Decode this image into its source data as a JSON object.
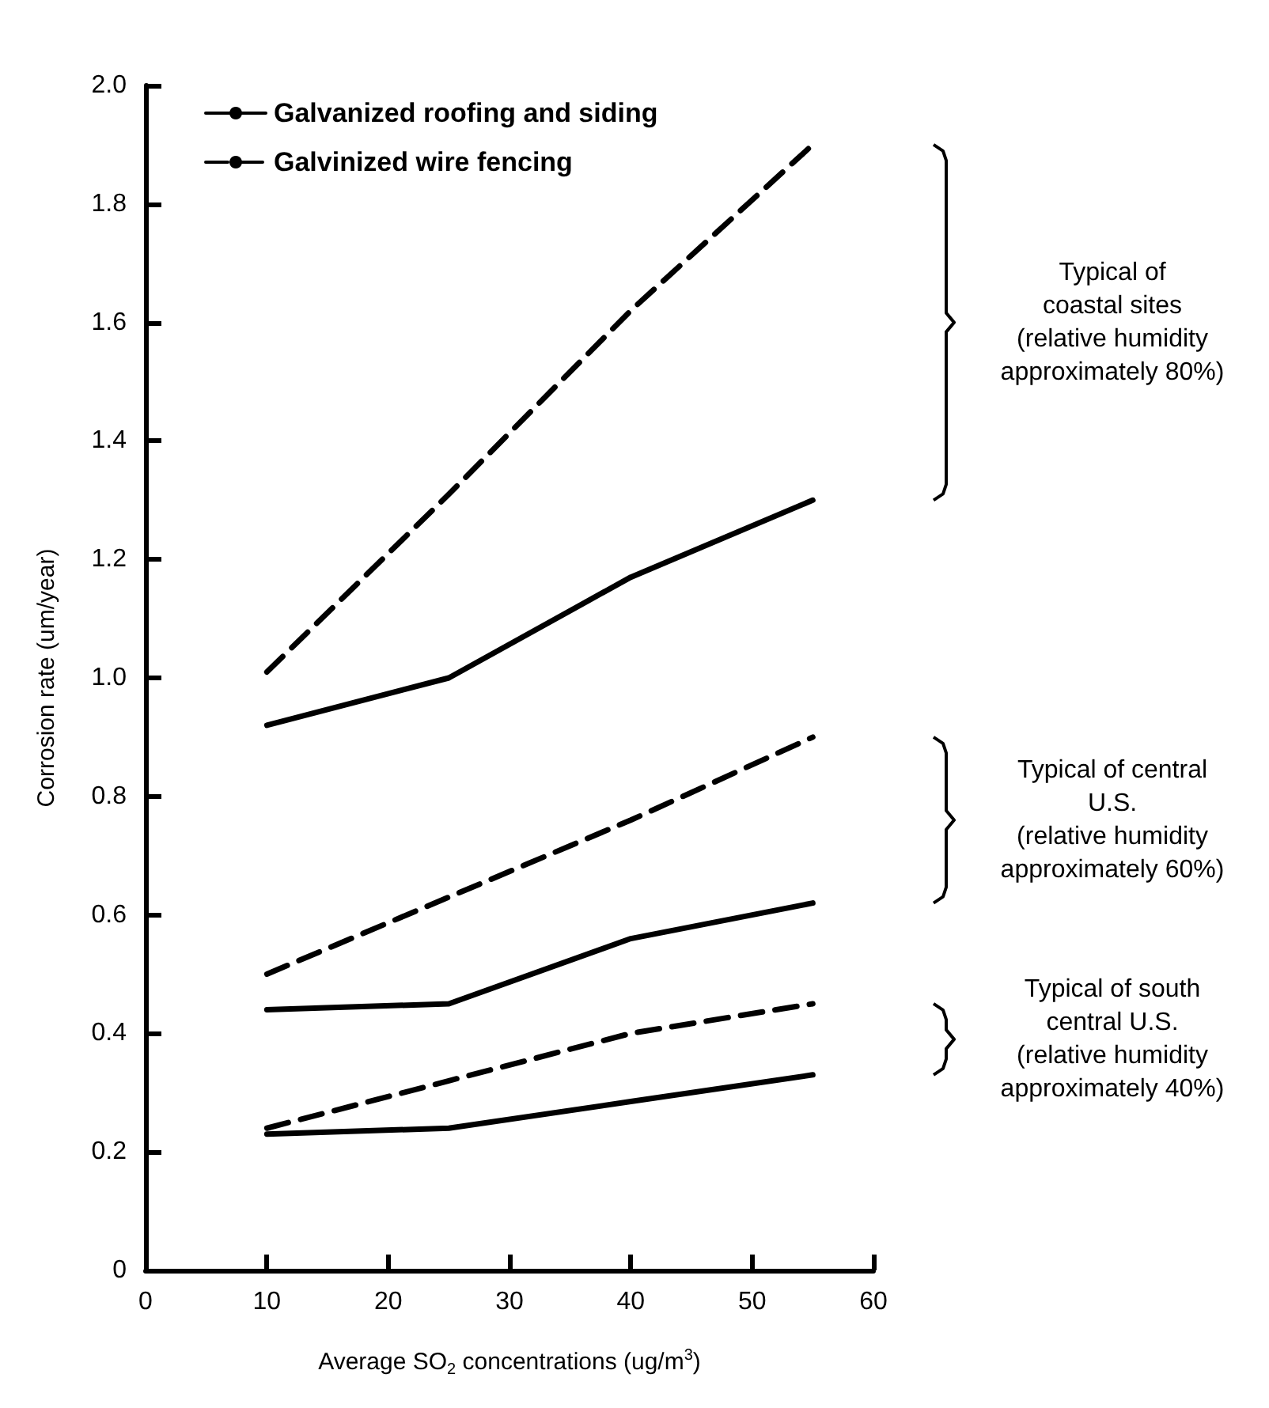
{
  "chart_data": {
    "type": "line",
    "xlabel": "Average SO$_{2}$ concentrations (ug/m$^{3}$)",
    "ylabel": "Corrosion rate (um/year)",
    "x": [
      10,
      25,
      40,
      55
    ],
    "xlim": [
      0,
      60
    ],
    "xticks": [
      0,
      10,
      20,
      30,
      40,
      50,
      60
    ],
    "ylim": [
      0,
      2
    ],
    "yticks": [
      0,
      0.2,
      0.4,
      0.6,
      0.8,
      {
        "value": 1,
        "label": "1.0"
      },
      1.2,
      1.4,
      1.6,
      1.8,
      {
        "value": 2,
        "label": "2.0"
      }
    ],
    "grid": false,
    "legend": "top left",
    "marker": "none",
    "series": [
      {
        "name": "Galvanized roofing and siding",
        "color": "#000000",
        "line_style": "solid",
        "values": [
          0.92,
          1.0,
          1.17,
          1.3
        ]
      },
      {
        "name": "Galvinized wire fencing",
        "color": "#000000",
        "line_style": "dashed",
        "values": [
          1.01,
          1.31,
          1.62,
          1.9
        ]
      },
      {
        "color": "#000000",
        "line_style": "solid",
        "values": [
          0.44,
          0.45,
          0.56,
          0.62
        ]
      },
      {
        "color": "#000000",
        "line_style": "dashed",
        "values": [
          0.5,
          0.63,
          0.76,
          0.9
        ]
      },
      {
        "color": "#000000",
        "line_style": "solid",
        "values": [
          0.23,
          0.24,
          0.285,
          0.33
        ]
      },
      {
        "color": "#000000",
        "line_style": "dashed",
        "values": [
          0.24,
          0.32,
          0.4,
          0.45
        ]
      }
    ],
    "annotations": [
      "Typical of\ncoastal sites\n(relative humidity\napproximately 80%)",
      "Typical of central\nU.S.\n(relative humidity\napproximately 60%)",
      "Typical of south\ncentral U.S.\n(relative humidity\napproximately 40%)"
    ]
  }
}
